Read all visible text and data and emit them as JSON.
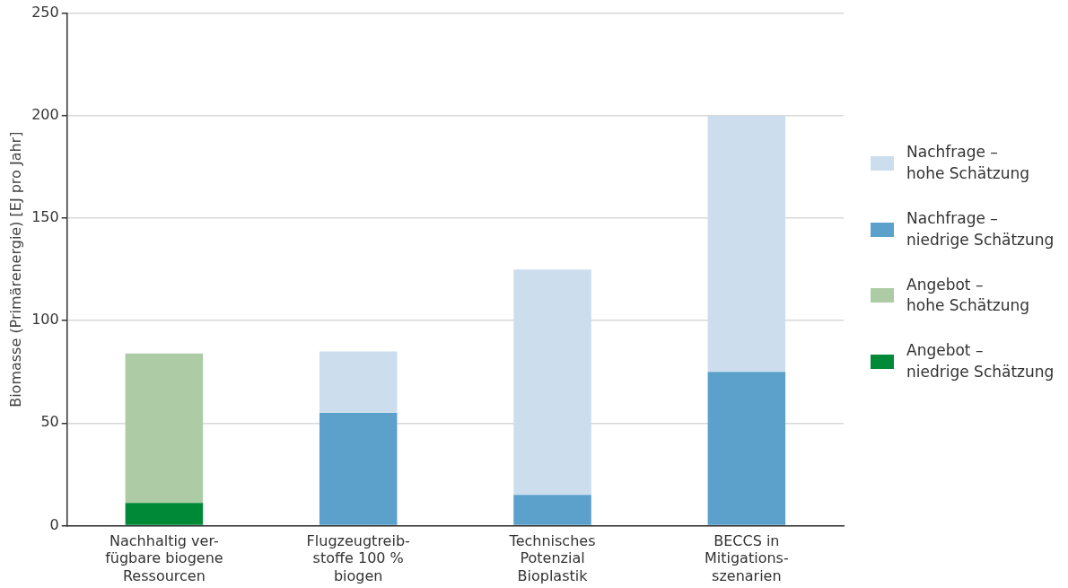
{
  "chart_data": {
    "type": "bar",
    "stacked": true,
    "ylabel": "Biomasse (Primärenergie) [EJ pro Jahr]",
    "categories": [
      "Nachhaltig ver-\nfügbare biogene\nRessourcen",
      "Flugzeugtreib-\nstoffe 100 %\nbiogen",
      "Technisches\nPotenzial\nBioplastik",
      "BECCS in\nMitigations-\nszenarien"
    ],
    "series": [
      {
        "name": "Angebot –\nniedrige Schätzung",
        "color": "#008a37",
        "values": [
          11,
          null,
          null,
          null
        ]
      },
      {
        "name": "Angebot –\nhohe Schätzung",
        "color": "#adcca6",
        "values": [
          73,
          null,
          null,
          null
        ]
      },
      {
        "name": "Nachfrage –\nniedrige Schätzung",
        "color": "#5ba1cc",
        "values": [
          null,
          55,
          15,
          75
        ]
      },
      {
        "name": "Nachfrage –\nhohe Schätzung",
        "color": "#ccdeee",
        "values": [
          null,
          30,
          110,
          125
        ]
      }
    ],
    "ylim": [
      0,
      250
    ],
    "yticks": [
      0,
      50,
      100,
      150,
      200,
      250
    ],
    "grid": "y",
    "legend": "right"
  }
}
